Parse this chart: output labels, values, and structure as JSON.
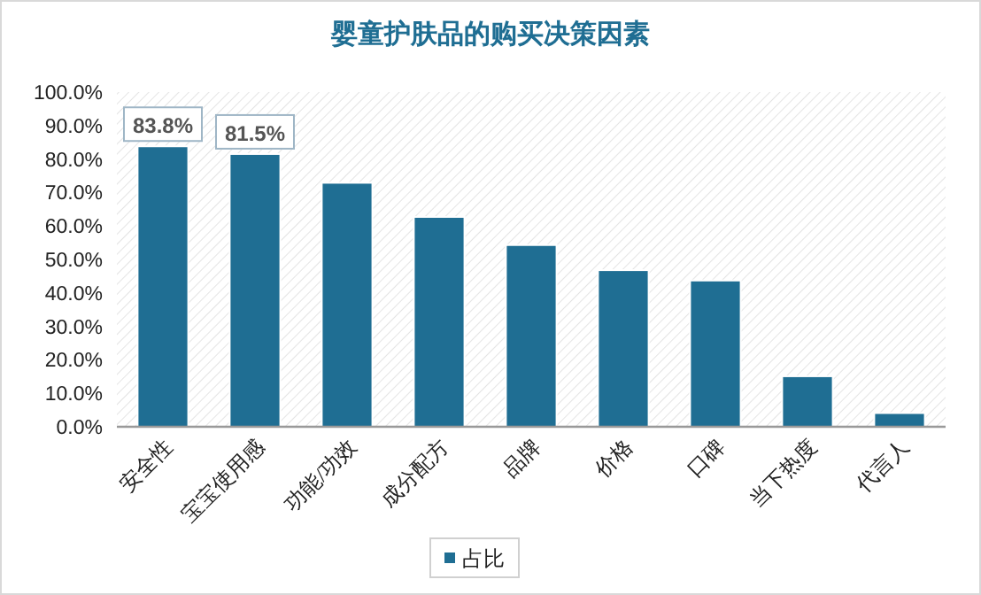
{
  "chart_data": {
    "type": "bar",
    "title": "婴童护肤品的购买决策因素",
    "categories": [
      "安全性",
      "宝宝使用感",
      "功能/功效",
      "成分配方",
      "品牌",
      "价格",
      "口碑",
      "当下热度",
      "代言人"
    ],
    "series": [
      {
        "name": "占比",
        "color": "#1f6e93",
        "values": [
          83.8,
          81.5,
          72.9,
          62.7,
          54.3,
          46.8,
          43.7,
          15.1,
          4.1
        ],
        "value_labels": [
          "83.8%",
          "81.5%",
          null,
          null,
          null,
          null,
          null,
          null,
          null
        ]
      }
    ],
    "ylim": [
      0,
      100
    ],
    "yticks": [
      {
        "value": 0,
        "label": "0.0%"
      },
      {
        "value": 10,
        "label": "10.0%"
      },
      {
        "value": 20,
        "label": "20.0%"
      },
      {
        "value": 30,
        "label": "30.0%"
      },
      {
        "value": 40,
        "label": "40.0%"
      },
      {
        "value": 50,
        "label": "50.0%"
      },
      {
        "value": 60,
        "label": "60.0%"
      },
      {
        "value": 70,
        "label": "70.0%"
      },
      {
        "value": 80,
        "label": "80.0%"
      },
      {
        "value": 90,
        "label": "90.0%"
      },
      {
        "value": 100,
        "label": "100.0%"
      }
    ],
    "legend": "bottom"
  }
}
